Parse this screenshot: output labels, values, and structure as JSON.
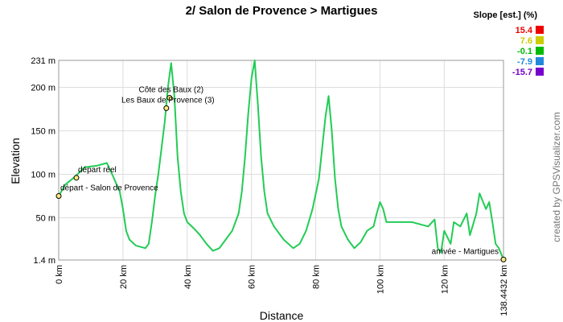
{
  "chart_data": {
    "type": "line",
    "title": "2/ Salon de Provence > Martigues",
    "x_label": "Distance",
    "y_label": "Elevation",
    "credit": "created by GPSVisualizer.com",
    "legend_title": "Slope [est.] (%)",
    "legend": [
      {
        "label": "15.4",
        "color": "#ee0000"
      },
      {
        "label": "7.6",
        "color": "#cccc00"
      },
      {
        "label": "-0.1",
        "color": "#00bb00"
      },
      {
        "label": "-7.9",
        "color": "#2288dd"
      },
      {
        "label": "-15.7",
        "color": "#7700cc"
      }
    ],
    "xlim": [
      0,
      138.4432
    ],
    "ylim": [
      1.4,
      231
    ],
    "xticks": [
      {
        "value": 0,
        "label": "0 km"
      },
      {
        "value": 20,
        "label": "20 km"
      },
      {
        "value": 40,
        "label": "40 km"
      },
      {
        "value": 60,
        "label": "60 km"
      },
      {
        "value": 80,
        "label": "80 km"
      },
      {
        "value": 100,
        "label": "100 km"
      },
      {
        "value": 120,
        "label": "120 km"
      },
      {
        "value": 138.4432,
        "label": "138.4432 km"
      }
    ],
    "yticks": [
      {
        "value": 1.4,
        "label": "1.4 m"
      },
      {
        "value": 50,
        "label": "50 m"
      },
      {
        "value": 100,
        "label": "100 m"
      },
      {
        "value": 150,
        "label": "150 m"
      },
      {
        "value": 200,
        "label": "200 m"
      },
      {
        "value": 231,
        "label": "231 m"
      }
    ],
    "grid": true,
    "series": [
      {
        "name": "Elevation",
        "color": "#22cc55",
        "x": [
          0,
          2,
          5,
          8,
          12,
          15,
          17,
          19,
          20,
          21,
          22,
          24,
          27,
          28,
          29,
          30,
          31,
          32,
          33,
          34,
          35,
          36,
          37,
          38,
          39,
          40,
          42,
          44,
          46,
          48,
          50,
          52,
          54,
          56,
          57,
          58,
          59,
          60,
          61,
          62,
          63,
          64,
          65,
          67,
          70,
          73,
          75,
          77,
          79,
          81,
          82,
          83,
          84,
          85,
          86,
          87,
          88,
          90,
          92,
          94,
          96,
          98,
          99,
          100,
          101,
          102,
          105,
          110,
          115,
          117,
          118,
          119,
          120,
          122,
          123,
          125,
          127,
          128,
          130,
          131,
          133,
          134,
          135,
          136,
          137,
          138.4432
        ],
        "values": [
          75,
          88,
          97,
          108,
          110,
          113,
          97,
          80,
          60,
          35,
          25,
          18,
          15,
          20,
          45,
          75,
          100,
          130,
          160,
          200,
          228,
          190,
          120,
          80,
          55,
          45,
          38,
          30,
          20,
          12,
          15,
          25,
          35,
          55,
          80,
          120,
          170,
          210,
          231,
          180,
          120,
          80,
          55,
          40,
          25,
          15,
          20,
          35,
          60,
          95,
          130,
          165,
          190,
          150,
          95,
          60,
          40,
          25,
          15,
          22,
          35,
          40,
          55,
          68,
          60,
          45,
          45,
          45,
          40,
          48,
          15,
          10,
          35,
          20,
          45,
          40,
          55,
          30,
          55,
          78,
          60,
          68,
          45,
          20,
          15,
          2
        ]
      }
    ],
    "annotations": [
      {
        "text": "départ - Salon de Provence",
        "x": 0,
        "y": 75
      },
      {
        "text": "départ réel",
        "x": 5.5,
        "y": 96
      },
      {
        "text": "Côte des Baux (2)",
        "x": 34.5,
        "y": 188
      },
      {
        "text": "Les Baux de Provence (3)",
        "x": 33.5,
        "y": 176
      },
      {
        "text": "arrivée - Martigues",
        "x": 138.4432,
        "y": 2
      }
    ]
  }
}
